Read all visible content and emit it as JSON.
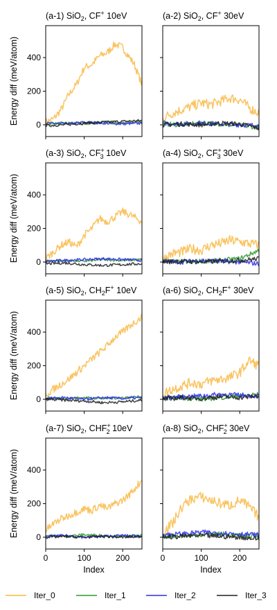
{
  "figure": {
    "ylabel": "Energy diff (meV/atom)",
    "xlabel": "Index",
    "colors": {
      "Iter_0": "#f9b843",
      "Iter_1": "#2f9a2f",
      "Iter_2": "#2b2bea",
      "Iter_3": "#1f1f1f"
    },
    "legend": [
      "Iter_0",
      "Iter_1",
      "Iter_2",
      "Iter_3"
    ],
    "xticks": [
      "0",
      "100",
      "200"
    ],
    "yticks": [
      "0",
      "200",
      "400"
    ]
  },
  "chart_data": [
    {
      "type": "line",
      "panel_label": "(a-1) SiO",
      "species": "CF",
      "sup": "+",
      "sub": "",
      "energy": "10eV",
      "xlim": [
        0,
        250
      ],
      "ylim": [
        -70,
        590
      ],
      "series": [
        {
          "name": "Iter_0",
          "x": [
            0,
            20,
            40,
            60,
            80,
            100,
            120,
            140,
            160,
            180,
            200,
            230,
            250
          ],
          "y": [
            15,
            35,
            90,
            180,
            240,
            340,
            360,
            410,
            430,
            480,
            460,
            360,
            240
          ]
        },
        {
          "name": "Iter_1",
          "x": [
            0,
            50,
            100,
            150,
            200,
            250
          ],
          "y": [
            5,
            10,
            5,
            15,
            10,
            20
          ]
        },
        {
          "name": "Iter_2",
          "x": [
            0,
            50,
            100,
            150,
            200,
            250
          ],
          "y": [
            10,
            5,
            15,
            10,
            5,
            10
          ]
        },
        {
          "name": "Iter_3",
          "x": [
            0,
            50,
            100,
            150,
            200,
            250
          ],
          "y": [
            -5,
            0,
            10,
            15,
            20,
            25
          ]
        }
      ]
    },
    {
      "type": "line",
      "panel_label": "(a-2) SiO",
      "species": "CF",
      "sup": "+",
      "sub": "",
      "energy": "30eV",
      "xlim": [
        0,
        250
      ],
      "ylim": [
        -70,
        590
      ],
      "series": [
        {
          "name": "Iter_0",
          "x": [
            0,
            25,
            50,
            75,
            100,
            125,
            150,
            175,
            200,
            225,
            250
          ],
          "y": [
            40,
            70,
            90,
            110,
            130,
            120,
            140,
            160,
            150,
            100,
            70
          ]
        },
        {
          "name": "Iter_1",
          "x": [
            0,
            50,
            100,
            150,
            200,
            250
          ],
          "y": [
            5,
            0,
            10,
            5,
            -5,
            -15
          ]
        },
        {
          "name": "Iter_2",
          "x": [
            0,
            50,
            100,
            150,
            200,
            250
          ],
          "y": [
            10,
            5,
            10,
            5,
            0,
            -5
          ]
        },
        {
          "name": "Iter_3",
          "x": [
            0,
            50,
            100,
            150,
            200,
            250
          ],
          "y": [
            0,
            5,
            0,
            10,
            5,
            -20
          ]
        }
      ]
    },
    {
      "type": "line",
      "panel_label": "(a-3) SiO",
      "species": "CF",
      "sup": "+",
      "sub": "3",
      "energy": "10eV",
      "xlim": [
        0,
        250
      ],
      "ylim": [
        -70,
        590
      ],
      "series": [
        {
          "name": "Iter_0",
          "x": [
            0,
            20,
            40,
            60,
            80,
            100,
            120,
            140,
            160,
            180,
            200,
            220,
            250
          ],
          "y": [
            20,
            60,
            100,
            120,
            90,
            160,
            200,
            260,
            240,
            270,
            300,
            280,
            240
          ]
        },
        {
          "name": "Iter_1",
          "x": [
            0,
            50,
            100,
            150,
            200,
            250
          ],
          "y": [
            5,
            10,
            5,
            15,
            10,
            15
          ]
        },
        {
          "name": "Iter_2",
          "x": [
            0,
            50,
            100,
            150,
            200,
            250
          ],
          "y": [
            5,
            10,
            15,
            20,
            15,
            10
          ]
        },
        {
          "name": "Iter_3",
          "x": [
            0,
            50,
            100,
            150,
            200,
            250
          ],
          "y": [
            -10,
            -5,
            -15,
            -20,
            -15,
            -10
          ]
        }
      ]
    },
    {
      "type": "line",
      "panel_label": "(a-4) SiO",
      "species": "CF",
      "sup": "+",
      "sub": "3",
      "energy": "30eV",
      "xlim": [
        0,
        250
      ],
      "ylim": [
        -70,
        590
      ],
      "series": [
        {
          "name": "Iter_0",
          "x": [
            0,
            25,
            50,
            75,
            100,
            125,
            150,
            175,
            200,
            225,
            250
          ],
          "y": [
            20,
            50,
            60,
            80,
            70,
            100,
            110,
            130,
            120,
            110,
            100
          ]
        },
        {
          "name": "Iter_1",
          "x": [
            0,
            50,
            100,
            150,
            200,
            250
          ],
          "y": [
            10,
            0,
            5,
            10,
            20,
            70
          ]
        },
        {
          "name": "Iter_2",
          "x": [
            0,
            50,
            100,
            150,
            200,
            250
          ],
          "y": [
            5,
            0,
            10,
            5,
            0,
            -10
          ]
        },
        {
          "name": "Iter_3",
          "x": [
            0,
            50,
            100,
            150,
            200,
            250
          ],
          "y": [
            0,
            5,
            0,
            5,
            10,
            20
          ]
        }
      ]
    },
    {
      "type": "line",
      "panel_label": "(a-5) SiO",
      "species": "CH",
      "species2": "F",
      "sub": "2",
      "sup": "+",
      "energy": "10eV",
      "xlim": [
        0,
        250
      ],
      "ylim": [
        -70,
        590
      ],
      "series": [
        {
          "name": "Iter_0",
          "x": [
            0,
            20,
            40,
            60,
            80,
            100,
            120,
            140,
            160,
            180,
            200,
            220,
            250
          ],
          "y": [
            30,
            60,
            90,
            120,
            160,
            200,
            240,
            280,
            320,
            370,
            400,
            440,
            490
          ]
        },
        {
          "name": "Iter_1",
          "x": [
            0,
            50,
            100,
            150,
            200,
            250
          ],
          "y": [
            10,
            5,
            10,
            5,
            10,
            15
          ]
        },
        {
          "name": "Iter_2",
          "x": [
            0,
            50,
            100,
            150,
            200,
            250
          ],
          "y": [
            5,
            10,
            0,
            10,
            5,
            10
          ]
        },
        {
          "name": "Iter_3",
          "x": [
            0,
            50,
            100,
            150,
            200,
            250
          ],
          "y": [
            0,
            -5,
            -10,
            -20,
            -15,
            -5
          ]
        }
      ]
    },
    {
      "type": "line",
      "panel_label": "(a-6) SiO",
      "species": "CH",
      "species2": "F",
      "sub": "2",
      "sup": "+",
      "energy": "30eV",
      "xlim": [
        0,
        250
      ],
      "ylim": [
        -70,
        590
      ],
      "series": [
        {
          "name": "Iter_0",
          "x": [
            0,
            25,
            50,
            75,
            100,
            125,
            150,
            175,
            200,
            225,
            250
          ],
          "y": [
            30,
            60,
            80,
            100,
            90,
            110,
            120,
            130,
            160,
            230,
            200
          ]
        },
        {
          "name": "Iter_1",
          "x": [
            0,
            50,
            100,
            150,
            200,
            250
          ],
          "y": [
            5,
            10,
            0,
            10,
            20,
            30
          ]
        },
        {
          "name": "Iter_2",
          "x": [
            0,
            50,
            100,
            150,
            200,
            250
          ],
          "y": [
            10,
            15,
            20,
            30,
            25,
            20
          ]
        },
        {
          "name": "Iter_3",
          "x": [
            0,
            50,
            100,
            150,
            200,
            250
          ],
          "y": [
            0,
            10,
            5,
            15,
            10,
            20
          ]
        }
      ]
    },
    {
      "type": "line",
      "panel_label": "(a-7) SiO",
      "species": "CHF",
      "sub": "2",
      "sup": "+",
      "energy": "10eV",
      "xlim": [
        0,
        250
      ],
      "ylim": [
        -70,
        590
      ],
      "series": [
        {
          "name": "Iter_0",
          "x": [
            0,
            20,
            40,
            60,
            80,
            100,
            120,
            140,
            160,
            180,
            200,
            220,
            250
          ],
          "y": [
            40,
            80,
            110,
            130,
            150,
            170,
            160,
            190,
            170,
            200,
            220,
            260,
            340
          ]
        },
        {
          "name": "Iter_1",
          "x": [
            0,
            50,
            100,
            150,
            200,
            250
          ],
          "y": [
            10,
            5,
            15,
            10,
            5,
            10
          ]
        },
        {
          "name": "Iter_2",
          "x": [
            0,
            50,
            100,
            150,
            200,
            250
          ],
          "y": [
            5,
            10,
            0,
            5,
            10,
            5
          ]
        },
        {
          "name": "Iter_3",
          "x": [
            0,
            50,
            100,
            150,
            200,
            250
          ],
          "y": [
            0,
            5,
            0,
            5,
            0,
            5
          ]
        }
      ]
    },
    {
      "type": "line",
      "panel_label": "(a-8) SiO",
      "species": "CHF",
      "sub": "2",
      "sup": "+",
      "energy": "30eV",
      "xlim": [
        0,
        250
      ],
      "ylim": [
        -70,
        590
      ],
      "series": [
        {
          "name": "Iter_0",
          "x": [
            0,
            25,
            50,
            75,
            100,
            125,
            150,
            175,
            200,
            225,
            250
          ],
          "y": [
            30,
            80,
            180,
            230,
            240,
            220,
            200,
            190,
            220,
            180,
            120
          ]
        },
        {
          "name": "Iter_1",
          "x": [
            0,
            50,
            100,
            150,
            200,
            250
          ],
          "y": [
            5,
            10,
            15,
            20,
            10,
            5
          ]
        },
        {
          "name": "Iter_2",
          "x": [
            0,
            50,
            100,
            150,
            200,
            250
          ],
          "y": [
            15,
            20,
            30,
            25,
            20,
            15
          ]
        },
        {
          "name": "Iter_3",
          "x": [
            0,
            50,
            100,
            150,
            200,
            250
          ],
          "y": [
            0,
            5,
            10,
            5,
            0,
            -10
          ]
        }
      ]
    }
  ]
}
